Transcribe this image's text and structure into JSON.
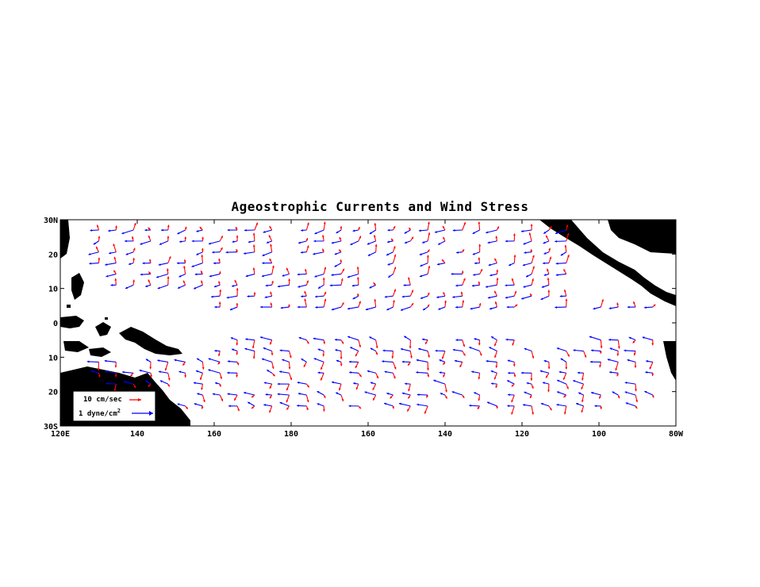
{
  "title": "Ageostrophic Currents and Wind Stress",
  "colors": {
    "current": "#ff0000",
    "wind_stress": "#0000ff",
    "land": "#000000",
    "background": "#ffffff"
  },
  "axes": {
    "lon_range": [
      120,
      280
    ],
    "lat_range": [
      -30,
      30
    ],
    "x_tick_labels": [
      "120E",
      "140",
      "160",
      "180",
      "160",
      "140",
      "120",
      "100",
      "80W"
    ],
    "y_tick_labels": [
      "30N",
      "20",
      "10",
      "0",
      "10",
      "20",
      "30S"
    ]
  },
  "legend": {
    "current_label": "10 cm/sec",
    "wind_label": "1 dyne/cm",
    "wind_label_superscript": "2"
  },
  "chart_data": {
    "type": "vector_map",
    "title": "Ageostrophic Currents and Wind Stress",
    "series": [
      {
        "name": "10 cm/sec",
        "color": "#ff0000"
      },
      {
        "name": "1 dyne/cm2",
        "color": "#0000ff"
      }
    ],
    "x_range": [
      120,
      280
    ],
    "y_range": [
      -30,
      30
    ],
    "grid": false
  }
}
